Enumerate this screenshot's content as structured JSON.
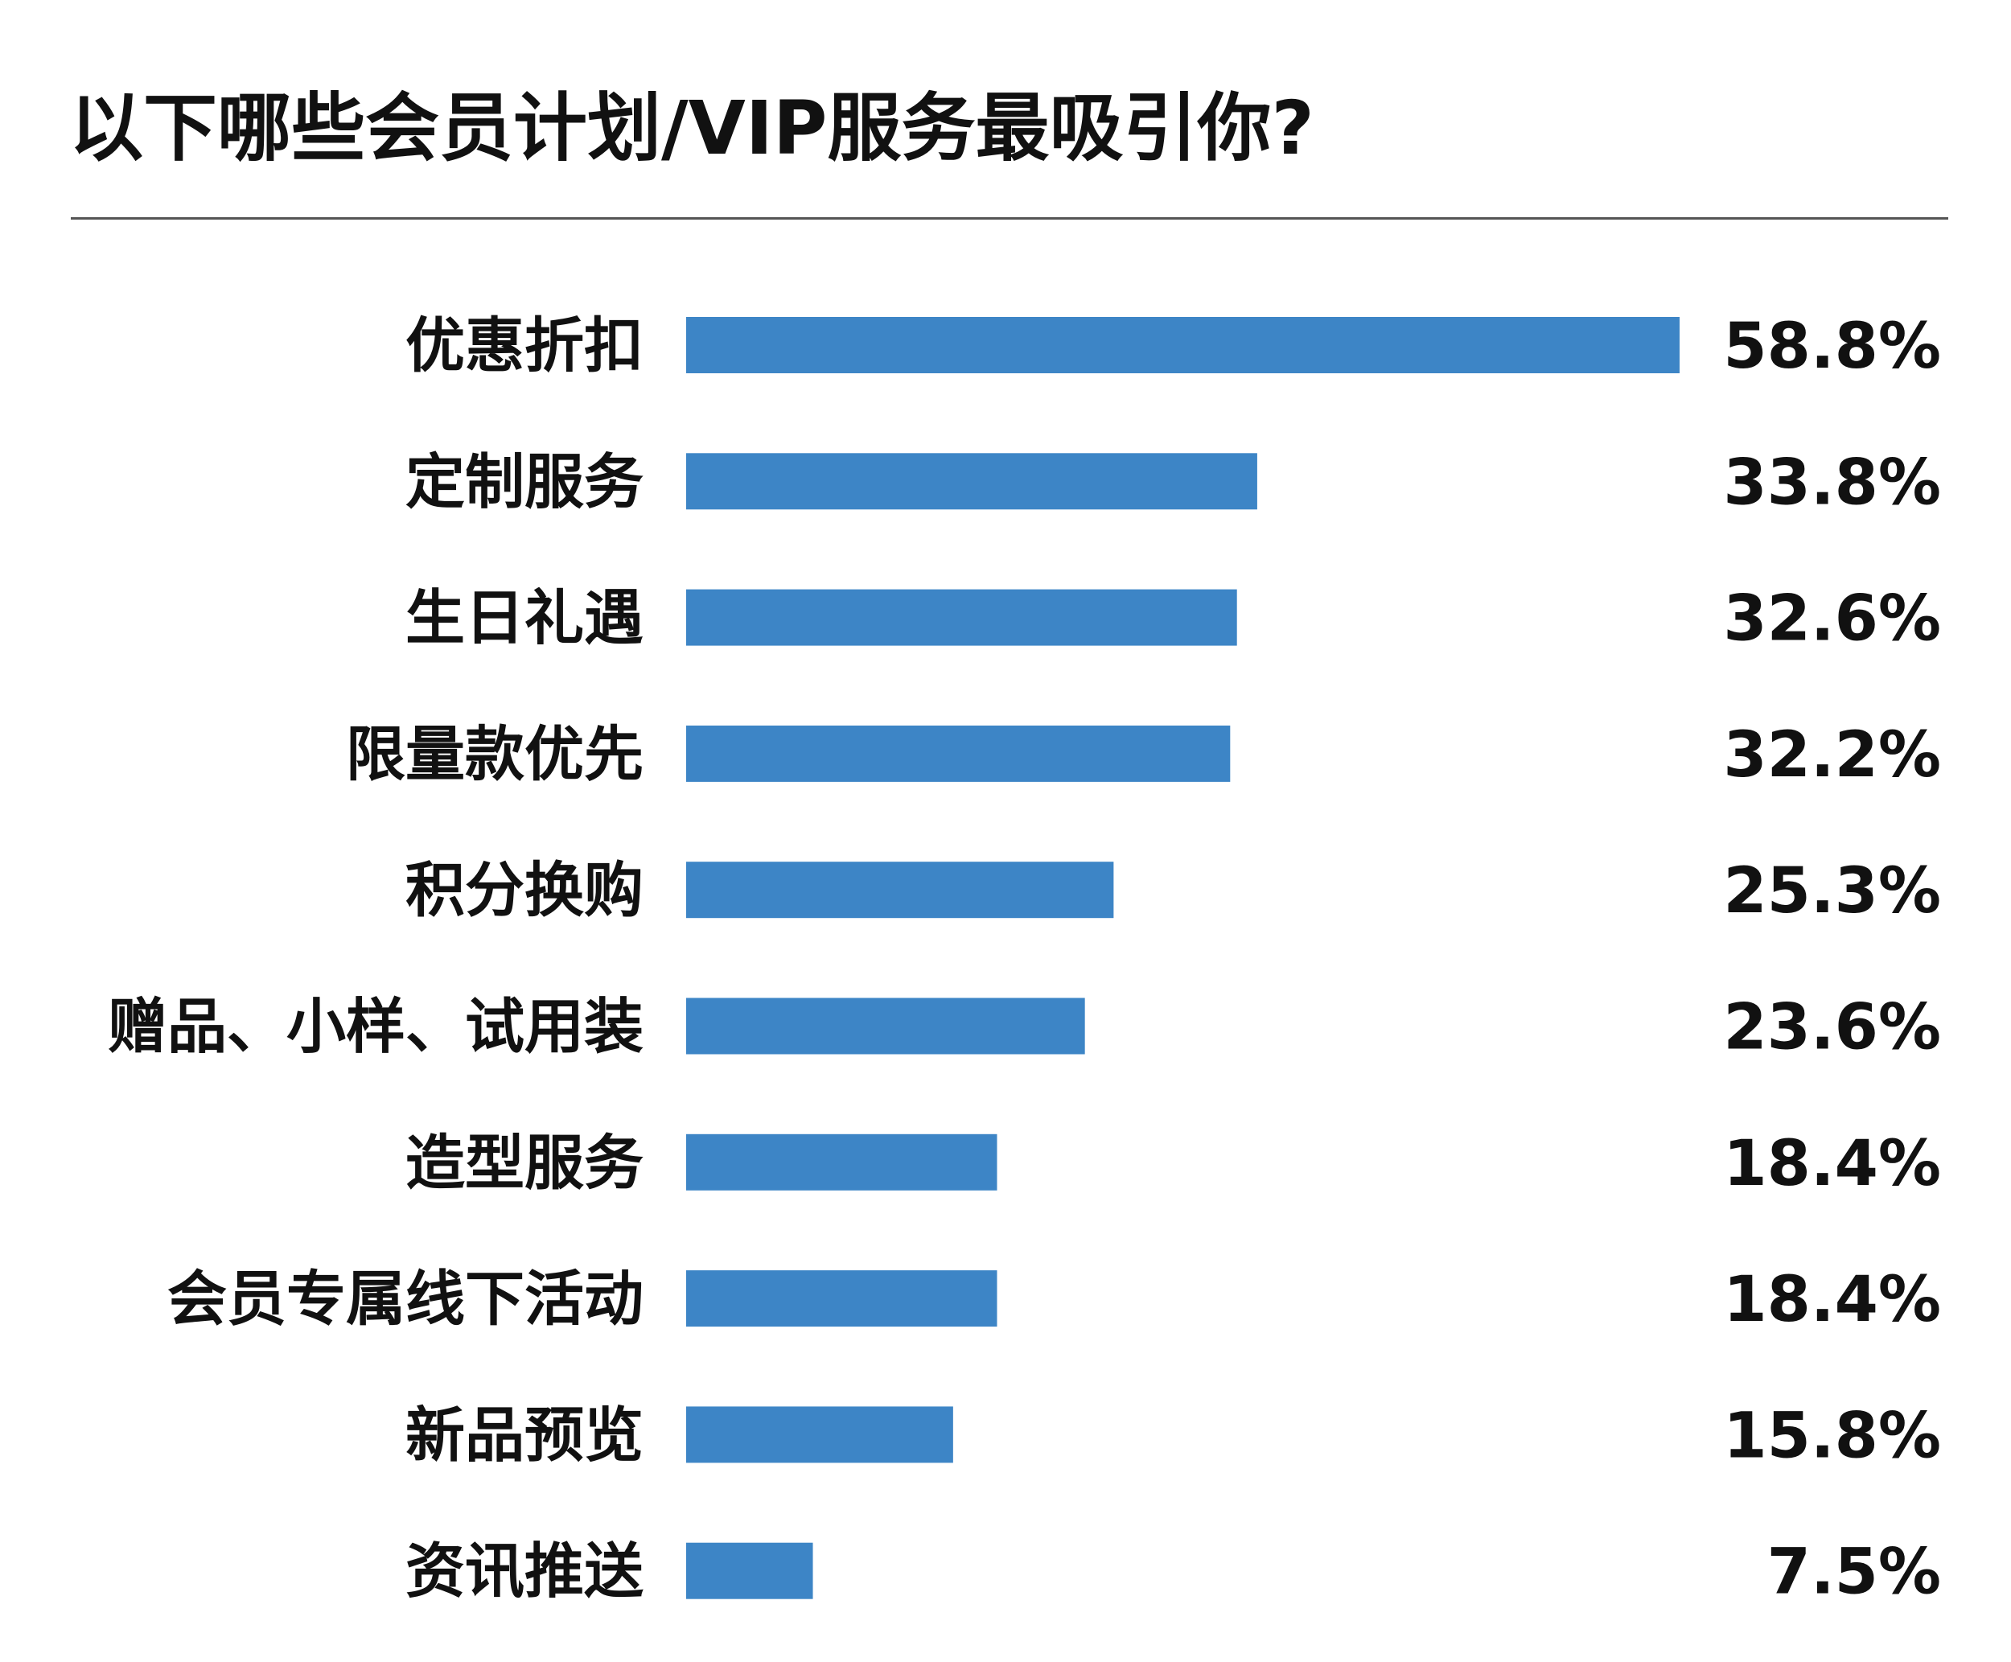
{
  "chart_data": {
    "type": "bar",
    "orientation": "horizontal",
    "title": "以下哪些会员计划/VIP服务最吸引你?",
    "categories": [
      "优惠折扣",
      "定制服务",
      "生日礼遇",
      "限量款优先",
      "积分换购",
      "赠品、小样、试用装",
      "造型服务",
      "会员专属线下活动",
      "新品预览",
      "资讯推送"
    ],
    "values": [
      58.8,
      33.8,
      32.6,
      32.2,
      25.3,
      23.6,
      18.4,
      18.4,
      15.8,
      7.5
    ],
    "value_labels": [
      "58.8%",
      "33.8%",
      "32.6%",
      "32.2%",
      "25.3%",
      "23.6%",
      "18.4%",
      "18.4%",
      "15.8%",
      "7.5%"
    ],
    "unit": "%",
    "bar_color": "#3d85c6",
    "grid": false,
    "legend": "none"
  }
}
